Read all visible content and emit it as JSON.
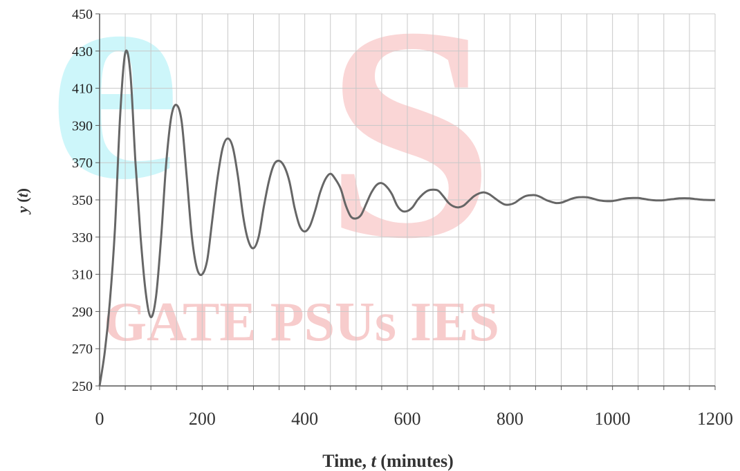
{
  "watermark": {
    "logo_text": "eS",
    "text": "GATE PSUs IES",
    "colors": {
      "e": "#cbf6fa",
      "s": "#fad4d4",
      "text": "#f7cccc"
    }
  },
  "chart_data": {
    "type": "line",
    "title": "",
    "xlabel_prefix": "Time, ",
    "xlabel_var": "t",
    "xlabel_suffix": " (minutes)",
    "ylabel_var": "y",
    "ylabel_paren_open": " (",
    "ylabel_t": "t",
    "ylabel_paren_close": ")",
    "xlim": [
      0,
      1200
    ],
    "ylim": [
      250,
      450
    ],
    "x_ticks": [
      0,
      200,
      400,
      600,
      800,
      1000,
      1200
    ],
    "y_ticks": [
      250,
      270,
      290,
      310,
      330,
      350,
      370,
      390,
      410,
      430,
      450
    ],
    "x_minor_step": 50,
    "grid": true,
    "series": [
      {
        "color": "#666666",
        "points": [
          [
            0,
            250
          ],
          [
            10,
            268
          ],
          [
            20,
            295
          ],
          [
            30,
            335
          ],
          [
            40,
            395
          ],
          [
            50,
            429
          ],
          [
            60,
            418
          ],
          [
            70,
            370
          ],
          [
            80,
            330
          ],
          [
            90,
            300
          ],
          [
            100,
            287
          ],
          [
            110,
            298
          ],
          [
            120,
            330
          ],
          [
            130,
            370
          ],
          [
            140,
            395
          ],
          [
            150,
            401
          ],
          [
            160,
            392
          ],
          [
            170,
            362
          ],
          [
            180,
            330
          ],
          [
            190,
            313
          ],
          [
            200,
            310
          ],
          [
            210,
            318
          ],
          [
            220,
            340
          ],
          [
            230,
            362
          ],
          [
            240,
            378
          ],
          [
            250,
            383
          ],
          [
            260,
            378
          ],
          [
            270,
            362
          ],
          [
            280,
            341
          ],
          [
            290,
            328
          ],
          [
            300,
            324
          ],
          [
            310,
            330
          ],
          [
            320,
            346
          ],
          [
            330,
            360
          ],
          [
            340,
            369
          ],
          [
            350,
            371
          ],
          [
            360,
            368
          ],
          [
            370,
            360
          ],
          [
            380,
            346
          ],
          [
            390,
            336
          ],
          [
            400,
            333
          ],
          [
            410,
            336
          ],
          [
            420,
            344
          ],
          [
            430,
            354
          ],
          [
            440,
            361
          ],
          [
            450,
            364
          ],
          [
            460,
            361
          ],
          [
            470,
            356
          ],
          [
            480,
            347
          ],
          [
            490,
            341
          ],
          [
            500,
            340
          ],
          [
            510,
            342
          ],
          [
            520,
            348
          ],
          [
            530,
            354
          ],
          [
            540,
            358
          ],
          [
            550,
            359
          ],
          [
            560,
            357
          ],
          [
            570,
            353
          ],
          [
            580,
            347
          ],
          [
            590,
            344
          ],
          [
            600,
            344
          ],
          [
            610,
            346
          ],
          [
            620,
            350
          ],
          [
            630,
            353
          ],
          [
            640,
            355
          ],
          [
            650,
            355.5
          ],
          [
            660,
            355
          ],
          [
            670,
            352
          ],
          [
            680,
            348.5
          ],
          [
            690,
            346.5
          ],
          [
            700,
            346
          ],
          [
            710,
            347
          ],
          [
            720,
            349.5
          ],
          [
            730,
            352
          ],
          [
            740,
            353.5
          ],
          [
            750,
            354
          ],
          [
            760,
            353
          ],
          [
            770,
            351
          ],
          [
            780,
            349
          ],
          [
            790,
            347.5
          ],
          [
            800,
            347.5
          ],
          [
            810,
            348.5
          ],
          [
            820,
            350.5
          ],
          [
            830,
            352
          ],
          [
            840,
            352.5
          ],
          [
            850,
            352.5
          ],
          [
            860,
            351.5
          ],
          [
            870,
            350
          ],
          [
            880,
            349
          ],
          [
            890,
            348.3
          ],
          [
            900,
            348.5
          ],
          [
            910,
            349.5
          ],
          [
            920,
            350.6
          ],
          [
            930,
            351.3
          ],
          [
            940,
            351.5
          ],
          [
            950,
            351.4
          ],
          [
            960,
            350.8
          ],
          [
            970,
            350
          ],
          [
            980,
            349.5
          ],
          [
            990,
            349.3
          ],
          [
            1000,
            349.4
          ],
          [
            1010,
            349.9
          ],
          [
            1020,
            350.5
          ],
          [
            1030,
            350.9
          ],
          [
            1040,
            351
          ],
          [
            1050,
            351
          ],
          [
            1060,
            350.6
          ],
          [
            1070,
            350.1
          ],
          [
            1080,
            349.8
          ],
          [
            1090,
            349.7
          ],
          [
            1100,
            349.8
          ],
          [
            1110,
            350.2
          ],
          [
            1120,
            350.5
          ],
          [
            1130,
            350.8
          ],
          [
            1140,
            350.9
          ],
          [
            1150,
            350.8
          ],
          [
            1160,
            350.5
          ],
          [
            1170,
            350.2
          ],
          [
            1180,
            350
          ],
          [
            1190,
            349.9
          ],
          [
            1200,
            349.9
          ]
        ]
      }
    ]
  }
}
